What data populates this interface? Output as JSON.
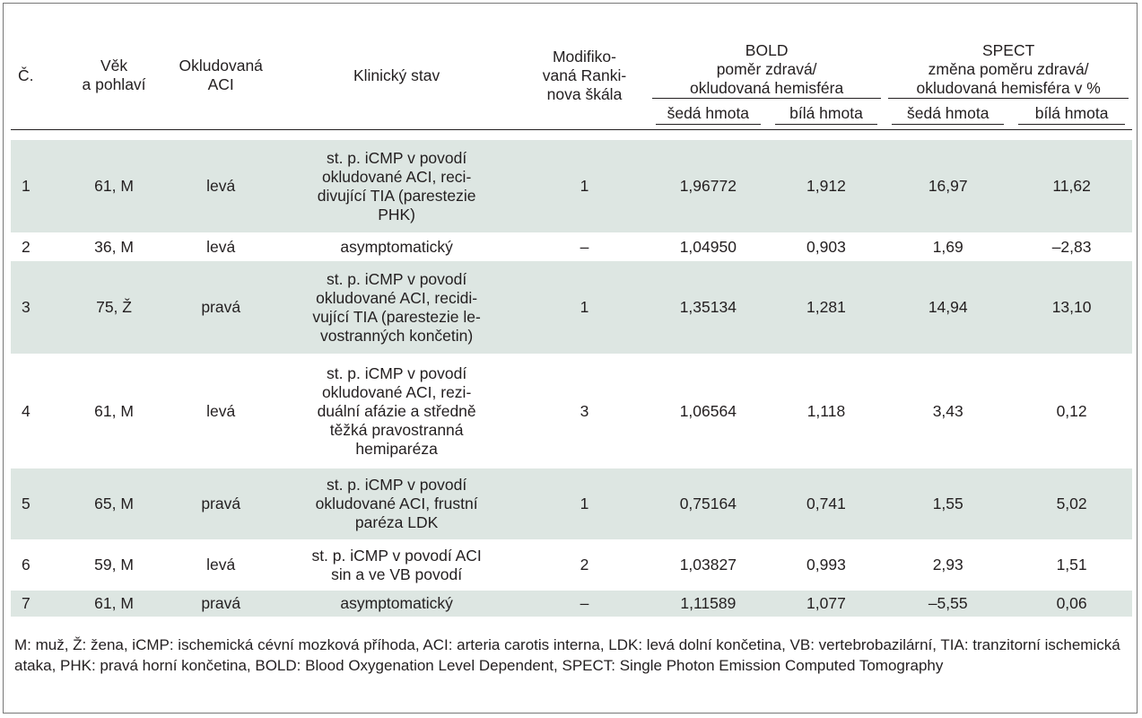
{
  "headers": {
    "cislo": "Č.",
    "vek_l1": "Věk",
    "vek_l2": "a pohlaví",
    "aci_l1": "Okludovaná",
    "aci_l2": "ACI",
    "stav": "Klinický stav",
    "rankin_l1": "Modifiko-",
    "rankin_l2": "vaná Ranki-",
    "rankin_l3": "nova škála",
    "bold_l1": "BOLD",
    "bold_l2": "poměr zdravá/",
    "bold_l3": "okludovaná hemisféra",
    "spect_l1": "SPECT",
    "spect_l2": "změna poměru zdravá/",
    "spect_l3": "okludovaná hemisféra v %",
    "seda": "šedá hmota",
    "bila": "bílá hmota"
  },
  "rows": [
    {
      "n": "1",
      "vek": "61, M",
      "aci": "levá",
      "stav": [
        "st. p. iCMP v povodí",
        "okludované ACI, reci-",
        "divující TIA (parestezie",
        "PHK)"
      ],
      "rankin": "1",
      "bold_seda": "1,96772",
      "bold_bila": "1,912",
      "spect_seda": "16,97",
      "spect_bila": "11,62"
    },
    {
      "n": "2",
      "vek": "36, M",
      "aci": "levá",
      "stav": [
        "asymptomatický"
      ],
      "rankin": "–",
      "bold_seda": "1,04950",
      "bold_bila": "0,903",
      "spect_seda": "1,69",
      "spect_bila": "–2,83"
    },
    {
      "n": "3",
      "vek": "75, Ž",
      "aci": "pravá",
      "stav": [
        "st. p. iCMP v povodí",
        "okludované ACI, recidi-",
        "vující TIA (parestezie le-",
        "vostranných končetin)"
      ],
      "rankin": "1",
      "bold_seda": "1,35134",
      "bold_bila": "1,281",
      "spect_seda": "14,94",
      "spect_bila": "13,10"
    },
    {
      "n": "4",
      "vek": "61, M",
      "aci": "levá",
      "stav": [
        "st. p. iCMP v povodí",
        "okludované ACI, rezi-",
        "duální afázie a středně",
        "těžká pravostranná",
        "hemiparéza"
      ],
      "rankin": "3",
      "bold_seda": "1,06564",
      "bold_bila": "1,118",
      "spect_seda": "3,43",
      "spect_bila": "0,12"
    },
    {
      "n": "5",
      "vek": "65, M",
      "aci": "pravá",
      "stav": [
        "st. p. iCMP v povodí",
        "okludované ACI, frustní",
        "paréza LDK"
      ],
      "rankin": "1",
      "bold_seda": "0,75164",
      "bold_bila": "0,741",
      "spect_seda": "1,55",
      "spect_bila": "5,02"
    },
    {
      "n": "6",
      "vek": "59, M",
      "aci": "levá",
      "stav": [
        "st. p. iCMP v povodí ACI",
        "sin a ve VB povodí"
      ],
      "rankin": "2",
      "bold_seda": "1,03827",
      "bold_bila": "0,993",
      "spect_seda": "2,93",
      "spect_bila": "1,51"
    },
    {
      "n": "7",
      "vek": "61, M",
      "aci": "pravá",
      "stav": [
        "asymptomatický"
      ],
      "rankin": "–",
      "bold_seda": "1,11589",
      "bold_bila": "1,077",
      "spect_seda": "–5,55",
      "spect_bila": "0,06"
    }
  ],
  "footnote": "M: muž, Ž: žena, iCMP: ischemická cévní mozková příhoda, ACI: arteria carotis interna, LDK: levá dolní končetina, VB: vertebrobazilární, TIA: tranzitorní ischemická ataka, PHK: pravá horní končetina, BOLD: Blood Oxygenation Level Dependent, SPECT: Single Photon Emission Computed Tomography"
}
